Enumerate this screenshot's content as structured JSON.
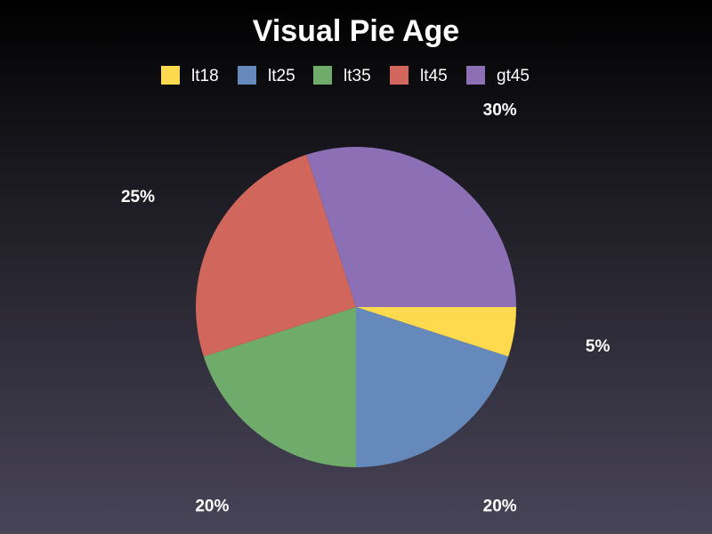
{
  "chart_data": {
    "type": "pie",
    "title": "Visual Pie Age",
    "legend_position": "top",
    "categories": [
      "lt18",
      "lt25",
      "lt35",
      "lt45",
      "gt45"
    ],
    "values": [
      5,
      20,
      20,
      25,
      30
    ],
    "labels": [
      "5%",
      "20%",
      "20%",
      "25%",
      "30%"
    ],
    "colors": [
      "#ffd94e",
      "#6689bb",
      "#6fab6a",
      "#d1675c",
      "#8c6fb4"
    ]
  }
}
